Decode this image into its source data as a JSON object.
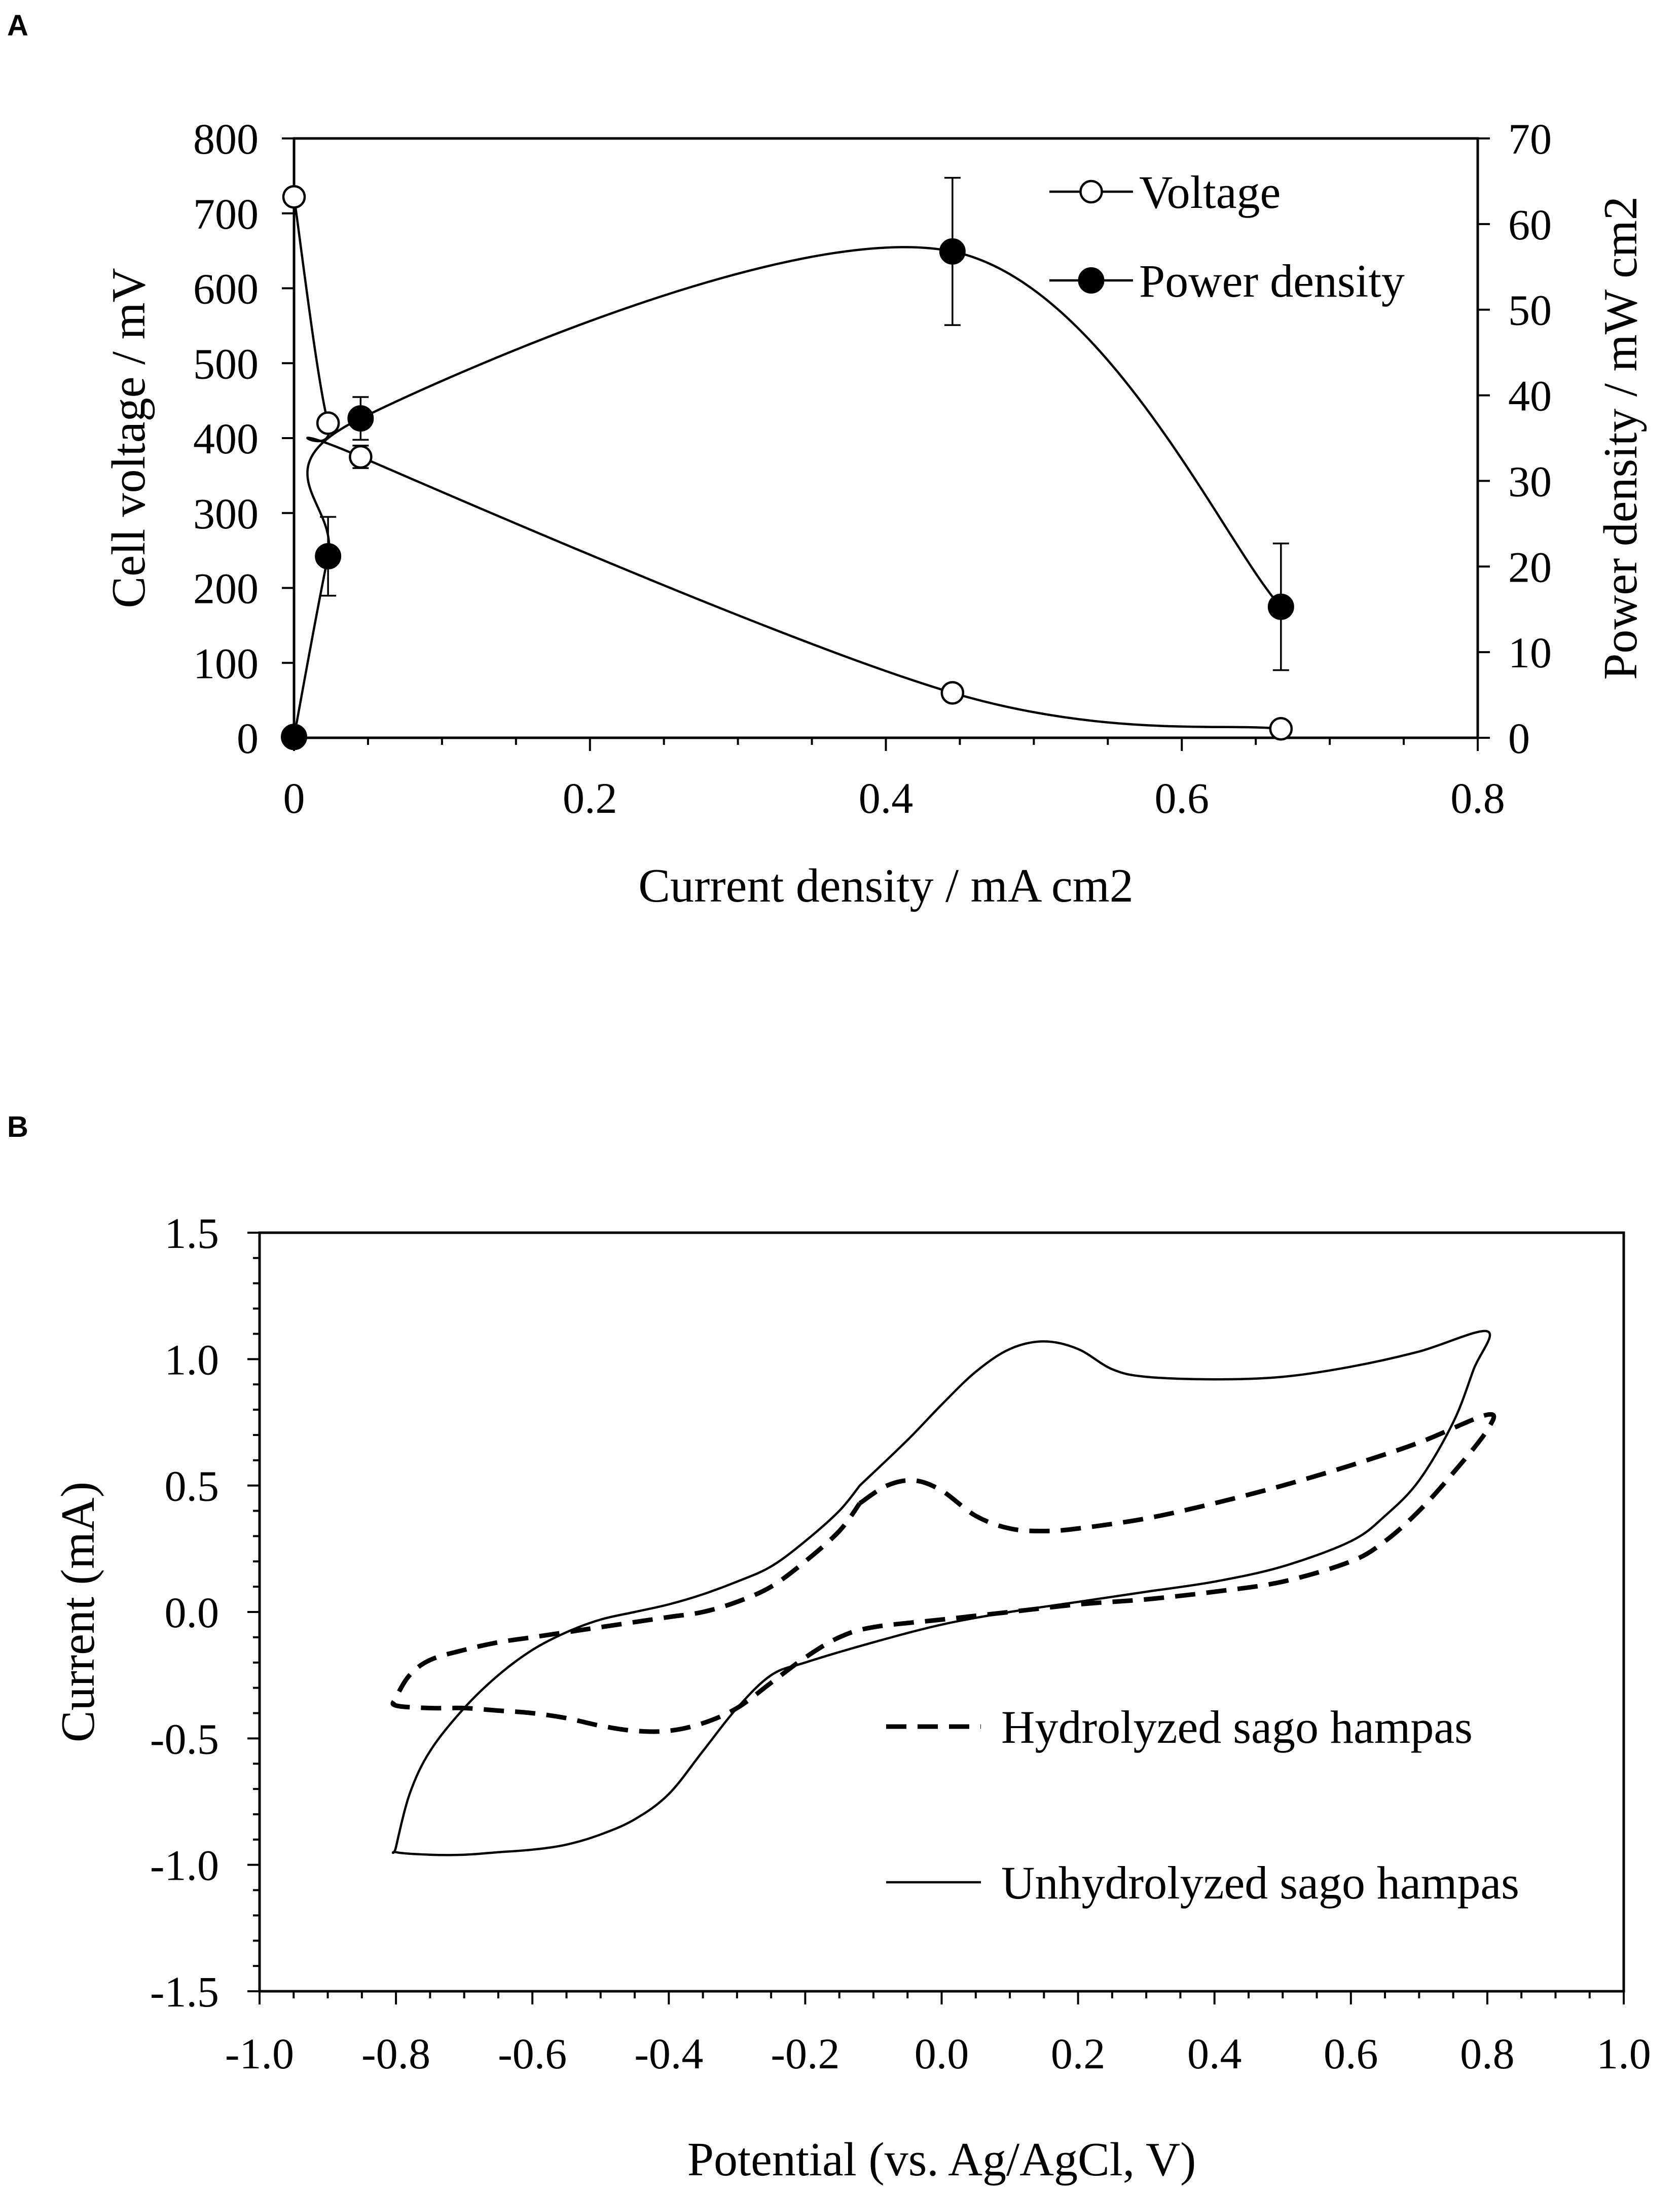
{
  "chart_data": [
    {
      "panel": "A",
      "type": "line",
      "xlabel": "Current density / mA cm2",
      "ylabel": "Cell voltage / mV",
      "y2label": "Power density / mW cm2",
      "xlim": [
        0,
        0.8
      ],
      "ylim": [
        0,
        800
      ],
      "y2lim": [
        0,
        70
      ],
      "xticks": [
        "0",
        "0.2",
        "0.4",
        "0.6",
        "0.8"
      ],
      "yticks": [
        "0",
        "100",
        "200",
        "300",
        "400",
        "500",
        "600",
        "700",
        "800"
      ],
      "y2ticks": [
        "0",
        "10",
        "20",
        "30",
        "40",
        "50",
        "60",
        "70"
      ],
      "legend_position": "top-right",
      "series": [
        {
          "name": "Voltage",
          "axis": "left",
          "marker": "open-circle",
          "x": [
            0,
            0.023,
            0.045,
            0.445,
            0.667
          ],
          "y": [
            722,
            420,
            375,
            60,
            12
          ],
          "yerr": [
            0,
            0,
            15,
            8,
            0
          ]
        },
        {
          "name": "Power density",
          "axis": "right",
          "marker": "filled-circle",
          "x": [
            0,
            0.023,
            0.045,
            0.445,
            0.667
          ],
          "y": [
            0.1,
            21.2,
            37.3,
            56.8,
            15.3
          ],
          "yerr": [
            0,
            4.6,
            2.5,
            8.6,
            7.4
          ]
        }
      ]
    },
    {
      "panel": "B",
      "type": "line",
      "xlabel": "Potential (vs. Ag/AgCl, V)",
      "ylabel": "Current (mA)",
      "xlim": [
        -1.0,
        1.0
      ],
      "ylim": [
        -1.5,
        1.5
      ],
      "xticks": [
        "-1.0",
        "-0.8",
        "-0.6",
        "-0.4",
        "-0.2",
        "0.0",
        "0.2",
        "0.4",
        "0.6",
        "0.8",
        "1.0"
      ],
      "yticks": [
        "-1.5",
        "-1.0",
        "-0.5",
        "0.0",
        "0.5",
        "1.0",
        "1.5"
      ],
      "legend_position": "bottom-right",
      "series": [
        {
          "name": "Hydrolyzed sago hampas",
          "style": "dashed",
          "x": [
            -0.12,
            -0.08,
            -0.04,
            0.0,
            0.05,
            0.1,
            0.15,
            0.2,
            0.3,
            0.4,
            0.5,
            0.6,
            0.7,
            0.8,
            0.8,
            0.75,
            0.7,
            0.65,
            0.6,
            0.5,
            0.4,
            0.3,
            0.2,
            0.1,
            0.0,
            -0.1,
            -0.15,
            -0.2,
            -0.25,
            -0.3,
            -0.35,
            -0.4,
            -0.45,
            -0.5,
            -0.55,
            -0.6,
            -0.65,
            -0.7,
            -0.75,
            -0.8,
            -0.8,
            -0.78,
            -0.75,
            -0.7,
            -0.65,
            -0.6,
            -0.55,
            -0.5,
            -0.45,
            -0.4,
            -0.35,
            -0.3,
            -0.25,
            -0.2,
            -0.15,
            -0.12
          ],
          "y": [
            0.43,
            0.5,
            0.52,
            0.48,
            0.38,
            0.33,
            0.32,
            0.33,
            0.37,
            0.43,
            0.5,
            0.58,
            0.67,
            0.78,
            0.72,
            0.55,
            0.4,
            0.28,
            0.2,
            0.12,
            0.08,
            0.05,
            0.03,
            0.0,
            -0.03,
            -0.06,
            -0.1,
            -0.18,
            -0.28,
            -0.38,
            -0.44,
            -0.47,
            -0.47,
            -0.45,
            -0.42,
            -0.4,
            -0.39,
            -0.38,
            -0.38,
            -0.37,
            -0.34,
            -0.25,
            -0.19,
            -0.15,
            -0.12,
            -0.1,
            -0.08,
            -0.06,
            -0.04,
            -0.02,
            0.0,
            0.04,
            0.1,
            0.2,
            0.32,
            0.43
          ]
        },
        {
          "name": "Unhydrolyzed sago hampas",
          "style": "solid",
          "x": [
            -0.12,
            -0.05,
            0.0,
            0.05,
            0.1,
            0.15,
            0.2,
            0.25,
            0.3,
            0.4,
            0.5,
            0.6,
            0.7,
            0.8,
            0.78,
            0.75,
            0.7,
            0.65,
            0.6,
            0.5,
            0.4,
            0.3,
            0.2,
            0.1,
            0.0,
            -0.1,
            -0.2,
            -0.25,
            -0.3,
            -0.35,
            -0.4,
            -0.45,
            -0.5,
            -0.55,
            -0.6,
            -0.65,
            -0.7,
            -0.75,
            -0.8,
            -0.8,
            -0.78,
            -0.75,
            -0.7,
            -0.65,
            -0.6,
            -0.55,
            -0.5,
            -0.45,
            -0.4,
            -0.35,
            -0.3,
            -0.25,
            -0.2,
            -0.15,
            -0.12
          ],
          "y": [
            0.5,
            0.68,
            0.82,
            0.95,
            1.04,
            1.07,
            1.04,
            0.96,
            0.93,
            0.92,
            0.93,
            0.97,
            1.03,
            1.11,
            0.96,
            0.75,
            0.52,
            0.38,
            0.28,
            0.18,
            0.12,
            0.08,
            0.04,
            0.0,
            -0.05,
            -0.12,
            -0.2,
            -0.25,
            -0.38,
            -0.55,
            -0.72,
            -0.82,
            -0.88,
            -0.92,
            -0.94,
            -0.95,
            -0.96,
            -0.96,
            -0.95,
            -0.93,
            -0.72,
            -0.55,
            -0.38,
            -0.25,
            -0.15,
            -0.08,
            -0.03,
            0.0,
            0.03,
            0.07,
            0.12,
            0.18,
            0.28,
            0.4,
            0.5
          ]
        }
      ]
    }
  ]
}
